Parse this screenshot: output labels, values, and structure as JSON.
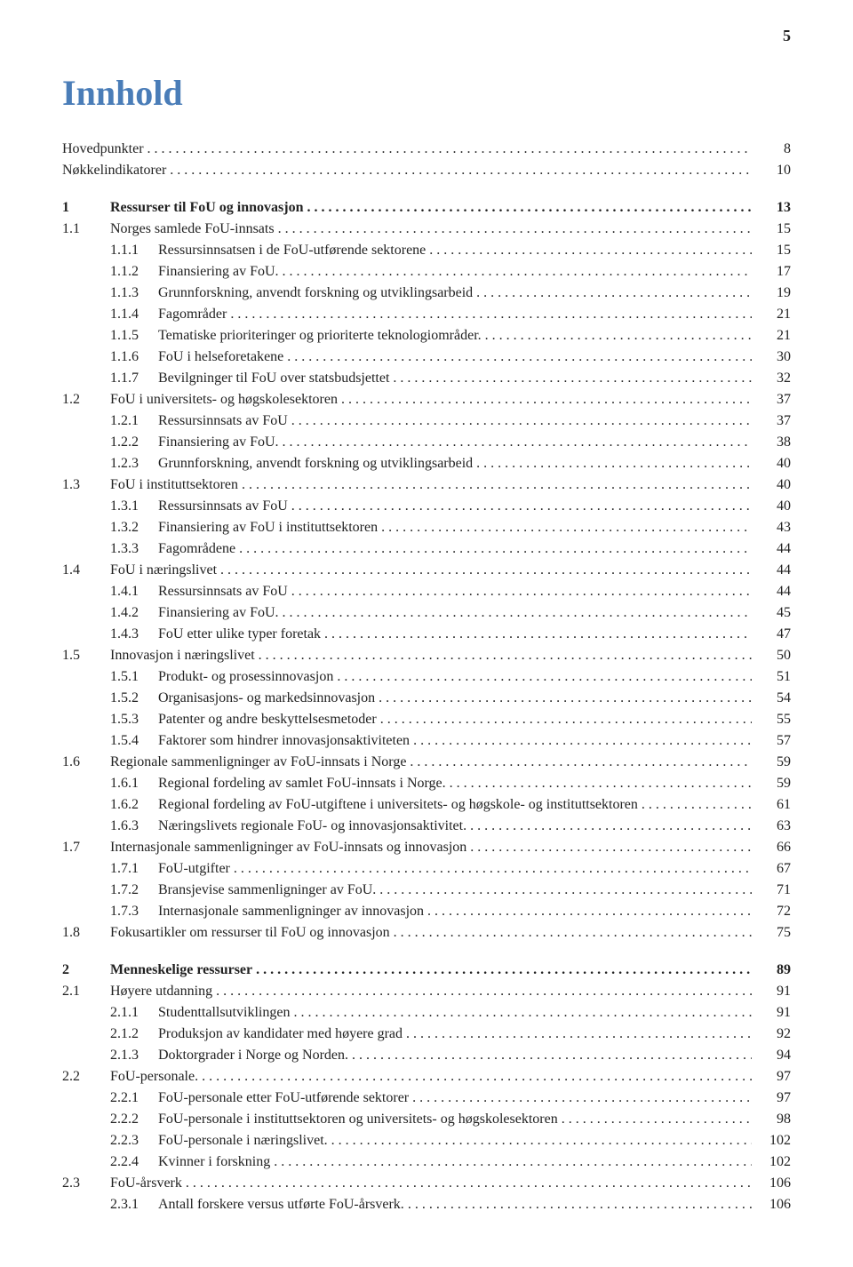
{
  "page_number": "5",
  "title": "Innhold",
  "sections": [
    {
      "rows": [
        {
          "level": 0,
          "num": "",
          "title": "Hovedpunkter",
          "page": "8",
          "bold": false
        },
        {
          "level": 0,
          "num": "",
          "title": "Nøkkelindikatorer",
          "page": "10",
          "bold": false
        }
      ]
    },
    {
      "rows": [
        {
          "level": 1,
          "num": "1",
          "title": "Ressurser til FoU og innovasjon",
          "page": "13",
          "bold": true
        },
        {
          "level": 1,
          "num": "1.1",
          "title": "Norges samlede FoU-innsats",
          "page": "15",
          "bold": false
        },
        {
          "level": 2,
          "num": "1.1.1",
          "title": "Ressursinnsatsen i de FoU-utførende sektorene",
          "page": "15",
          "bold": false
        },
        {
          "level": 2,
          "num": "1.1.2",
          "title": "Finansiering av FoU.",
          "page": "17",
          "bold": false
        },
        {
          "level": 2,
          "num": "1.1.3",
          "title": "Grunnforskning, anvendt forskning og utviklingsarbeid",
          "page": "19",
          "bold": false
        },
        {
          "level": 2,
          "num": "1.1.4",
          "title": "Fagområder",
          "page": "21",
          "bold": false
        },
        {
          "level": 2,
          "num": "1.1.5",
          "title": "Tematiske prioriteringer og prioriterte teknologiområder.",
          "page": "21",
          "bold": false
        },
        {
          "level": 2,
          "num": "1.1.6",
          "title": "FoU i helseforetakene",
          "page": "30",
          "bold": false
        },
        {
          "level": 2,
          "num": "1.1.7",
          "title": "Bevilgninger til FoU over statsbudsjettet",
          "page": "32",
          "bold": false
        },
        {
          "level": 1,
          "num": "1.2",
          "title": "FoU i universitets- og høgskolesektoren",
          "page": "37",
          "bold": false
        },
        {
          "level": 2,
          "num": "1.2.1",
          "title": "Ressursinnsats av FoU",
          "page": "37",
          "bold": false
        },
        {
          "level": 2,
          "num": "1.2.2",
          "title": "Finansiering av FoU.",
          "page": "38",
          "bold": false
        },
        {
          "level": 2,
          "num": "1.2.3",
          "title": "Grunnforskning, anvendt forskning og utviklingsarbeid",
          "page": "40",
          "bold": false
        },
        {
          "level": 1,
          "num": "1.3",
          "title": "FoU i instituttsektoren",
          "page": "40",
          "bold": false
        },
        {
          "level": 2,
          "num": "1.3.1",
          "title": "Ressursinnsats av FoU",
          "page": "40",
          "bold": false
        },
        {
          "level": 2,
          "num": "1.3.2",
          "title": "Finansiering av FoU i instituttsektoren",
          "page": "43",
          "bold": false
        },
        {
          "level": 2,
          "num": "1.3.3",
          "title": "Fagområdene",
          "page": "44",
          "bold": false
        },
        {
          "level": 1,
          "num": "1.4",
          "title": "FoU i næringslivet",
          "page": "44",
          "bold": false
        },
        {
          "level": 2,
          "num": "1.4.1",
          "title": "Ressursinnsats av FoU",
          "page": "44",
          "bold": false
        },
        {
          "level": 2,
          "num": "1.4.2",
          "title": "Finansiering av FoU.",
          "page": "45",
          "bold": false
        },
        {
          "level": 2,
          "num": "1.4.3",
          "title": "FoU etter ulike typer foretak",
          "page": "47",
          "bold": false
        },
        {
          "level": 1,
          "num": "1.5",
          "title": "Innovasjon i næringslivet",
          "page": "50",
          "bold": false
        },
        {
          "level": 2,
          "num": "1.5.1",
          "title": "Produkt- og prosessinnovasjon",
          "page": "51",
          "bold": false
        },
        {
          "level": 2,
          "num": "1.5.2",
          "title": "Organisasjons- og markedsinnovasjon",
          "page": "54",
          "bold": false
        },
        {
          "level": 2,
          "num": "1.5.3",
          "title": "Patenter og andre beskyttelsesmetoder",
          "page": "55",
          "bold": false
        },
        {
          "level": 2,
          "num": "1.5.4",
          "title": "Faktorer som hindrer innovasjonsaktiviteten",
          "page": "57",
          "bold": false
        },
        {
          "level": 1,
          "num": "1.6",
          "title": "Regionale sammenligninger av FoU-innsats i Norge",
          "page": "59",
          "bold": false
        },
        {
          "level": 2,
          "num": "1.6.1",
          "title": "Regional fordeling av samlet FoU-innsats i Norge.",
          "page": "59",
          "bold": false
        },
        {
          "level": 2,
          "num": "1.6.2",
          "title": "Regional fordeling av FoU-utgiftene i universitets- og høgskole- og instituttsektoren",
          "page": "61",
          "bold": false
        },
        {
          "level": 2,
          "num": "1.6.3",
          "title": "Næringslivets regionale FoU- og innovasjonsaktivitet.",
          "page": "63",
          "bold": false
        },
        {
          "level": 1,
          "num": "1.7",
          "title": "Internasjonale sammenligninger av FoU-innsats og innovasjon",
          "page": "66",
          "bold": false
        },
        {
          "level": 2,
          "num": "1.7.1",
          "title": "FoU-utgifter",
          "page": "67",
          "bold": false
        },
        {
          "level": 2,
          "num": "1.7.2",
          "title": "Bransjevise sammenligninger av FoU.",
          "page": "71",
          "bold": false
        },
        {
          "level": 2,
          "num": "1.7.3",
          "title": "Internasjonale sammenligninger av innovasjon",
          "page": "72",
          "bold": false
        },
        {
          "level": 1,
          "num": "1.8",
          "title": "Fokusartikler om ressurser til FoU og innovasjon",
          "page": "75",
          "bold": false
        }
      ]
    },
    {
      "rows": [
        {
          "level": 1,
          "num": "2",
          "title": "Menneskelige ressurser",
          "page": "89",
          "bold": true
        },
        {
          "level": 1,
          "num": "2.1",
          "title": "Høyere utdanning",
          "page": "91",
          "bold": false
        },
        {
          "level": 2,
          "num": "2.1.1",
          "title": "Studenttallsutviklingen",
          "page": "91",
          "bold": false
        },
        {
          "level": 2,
          "num": "2.1.2",
          "title": "Produksjon av kandidater med høyere grad",
          "page": "92",
          "bold": false
        },
        {
          "level": 2,
          "num": "2.1.3",
          "title": "Doktorgrader i Norge og Norden.",
          "page": "94",
          "bold": false
        },
        {
          "level": 1,
          "num": "2.2",
          "title": "FoU-personale.",
          "page": "97",
          "bold": false
        },
        {
          "level": 2,
          "num": "2.2.1",
          "title": "FoU-personale etter FoU-utførende sektorer",
          "page": "97",
          "bold": false
        },
        {
          "level": 2,
          "num": "2.2.2",
          "title": "FoU-personale i instituttsektoren og universitets- og høgskolesektoren",
          "page": "98",
          "bold": false
        },
        {
          "level": 2,
          "num": "2.2.3",
          "title": "FoU-personale i næringslivet.",
          "page": "102",
          "bold": false
        },
        {
          "level": 2,
          "num": "2.2.4",
          "title": "Kvinner i forskning",
          "page": "102",
          "bold": false
        },
        {
          "level": 1,
          "num": "2.3",
          "title": "FoU-årsverk",
          "page": "106",
          "bold": false
        },
        {
          "level": 2,
          "num": "2.3.1",
          "title": "Antall forskere versus utførte FoU-årsverk.",
          "page": "106",
          "bold": false
        }
      ]
    }
  ]
}
